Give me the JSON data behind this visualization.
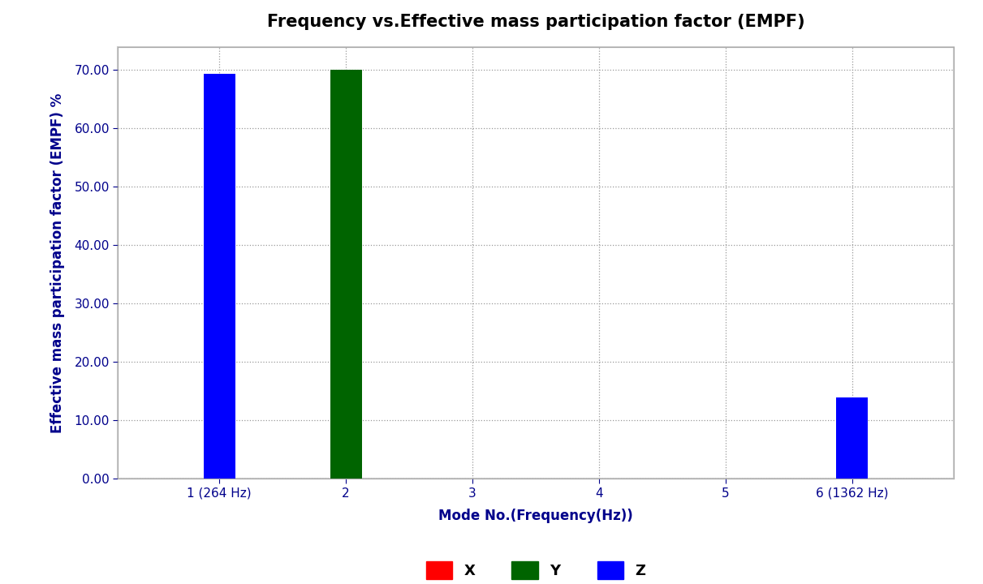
{
  "title": "Frequency vs.Effective mass participation factor (EMPF)",
  "xlabel": "Mode No.(Frequency(Hz))",
  "ylabel": "Effective mass participation factor (EMPF) %",
  "categories": [
    "1 (264 Hz)",
    "2",
    "3",
    "4",
    "5",
    "6 (1362 Hz)"
  ],
  "x_values": [
    1,
    2,
    3,
    4,
    5,
    6
  ],
  "bars": [
    {
      "mode": 1,
      "direction": "Z",
      "value": 69.3,
      "color": "#0000FF"
    },
    {
      "mode": 2,
      "direction": "Y",
      "value": 70.0,
      "color": "#006400"
    },
    {
      "mode": 6,
      "direction": "Z",
      "value": 14.0,
      "color": "#0000FF"
    }
  ],
  "ylim": [
    0,
    74
  ],
  "yticks": [
    0.0,
    10.0,
    20.0,
    30.0,
    40.0,
    50.0,
    60.0,
    70.0
  ],
  "bar_width": 0.25,
  "legend_items": [
    {
      "label": "X",
      "color": "#FF0000"
    },
    {
      "label": "Y",
      "color": "#006400"
    },
    {
      "label": "Z",
      "color": "#0000FF"
    }
  ],
  "title_fontsize": 15,
  "axis_label_fontsize": 12,
  "tick_fontsize": 11,
  "legend_fontsize": 13,
  "text_color": "#00008B",
  "background_color": "#FFFFFF",
  "plot_bg_color": "#FFFFFF",
  "grid_color": "#999999",
  "grid_style": "dotted",
  "frame_color": "#AAAAAA"
}
